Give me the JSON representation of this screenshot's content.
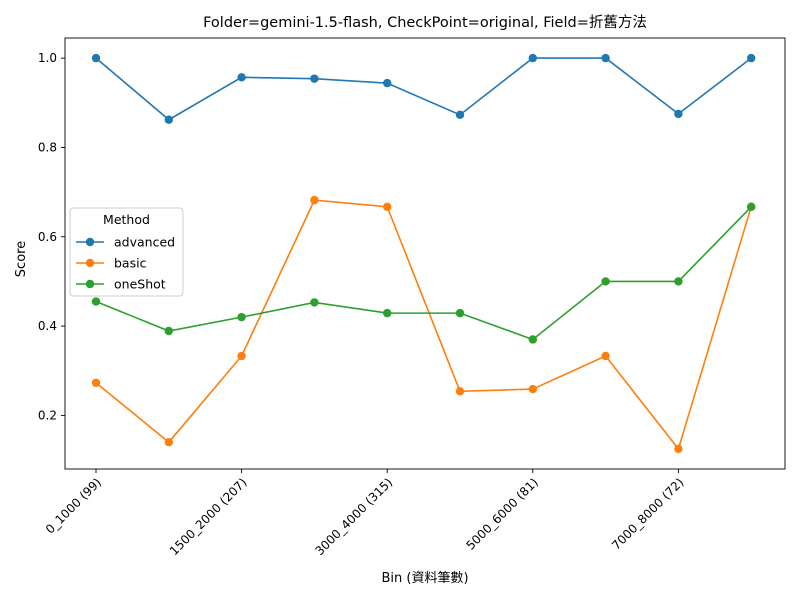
{
  "chart_data": {
    "type": "line",
    "title": "Folder=gemini-1.5-flash, CheckPoint=original, Field=折舊方法",
    "xlabel": "Bin (資料筆數)",
    "ylabel": "Score",
    "ylim": [
      0.08,
      1.045
    ],
    "yticks": [
      0.2,
      0.4,
      0.6,
      0.8,
      1.0
    ],
    "ytick_labels": [
      "0.2",
      "0.4",
      "0.6",
      "0.8",
      "1.0"
    ],
    "xtick_labels": [
      "0_1000 (99)",
      "1500_2000 (207)",
      "3000_4000 (315)",
      "5000_6000 (81)",
      "7000_8000 (72)"
    ],
    "xtick_positions": [
      0,
      2,
      4,
      6,
      8
    ],
    "n_points": 10,
    "grid": false,
    "legend": {
      "title": "Method",
      "placement": "center-left"
    },
    "series": [
      {
        "name": "advanced",
        "color": "#1f77b4",
        "values": [
          1.0,
          0.862,
          0.957,
          0.954,
          0.944,
          0.873,
          1.0,
          1.0,
          0.875,
          1.0
        ]
      },
      {
        "name": "basic",
        "color": "#ff7f0e",
        "values": [
          0.273,
          0.14,
          0.333,
          0.682,
          0.667,
          0.254,
          0.259,
          0.333,
          0.125,
          0.667
        ]
      },
      {
        "name": "oneShot",
        "color": "#2ca02c",
        "values": [
          0.455,
          0.389,
          0.42,
          0.453,
          0.429,
          0.429,
          0.37,
          0.5,
          0.5,
          0.667
        ]
      }
    ]
  }
}
